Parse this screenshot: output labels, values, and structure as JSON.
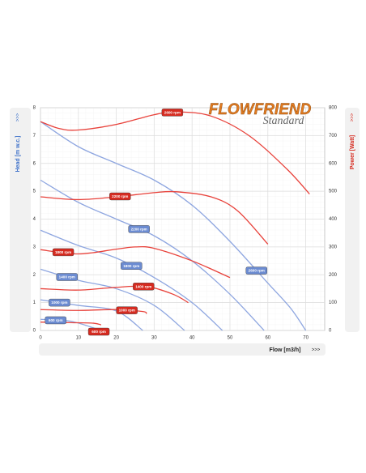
{
  "logo": {
    "brand": "FLOWFRIEND",
    "edition": "Standard"
  },
  "chart_data": {
    "type": "line",
    "y_label": "Head [m w.c.]",
    "y2_label": "Power [Watt]",
    "x_label": "Flow [m3/h]",
    "axis_arrow": ">>>",
    "xlim": [
      0,
      75
    ],
    "xticks": [
      0,
      10,
      20,
      30,
      40,
      50,
      60,
      70
    ],
    "ylim": [
      0,
      8
    ],
    "yticks": [
      0,
      1,
      2,
      3,
      4,
      5,
      6,
      7,
      8
    ],
    "y2lim": [
      0,
      800
    ],
    "y2ticks": [
      0,
      100,
      200,
      300,
      400,
      500,
      600,
      700,
      800
    ],
    "grid": true,
    "series": [
      {
        "name": "2600 rpm",
        "color": "#8ea6e0",
        "x": [
          0,
          10,
          20,
          30,
          40,
          50,
          60,
          66,
          70
        ],
        "values": [
          7.5,
          6.6,
          6.0,
          5.4,
          4.5,
          3.2,
          1.7,
          0.8,
          0
        ]
      },
      {
        "name": "2200 rpm",
        "color": "#8ea6e0",
        "x": [
          0,
          10,
          20,
          30,
          40,
          50,
          59
        ],
        "values": [
          5.4,
          4.6,
          4.0,
          3.4,
          2.5,
          1.3,
          0
        ]
      },
      {
        "name": "1800 rpm",
        "color": "#8ea6e0",
        "x": [
          0,
          10,
          20,
          30,
          40,
          48
        ],
        "values": [
          3.6,
          3.05,
          2.6,
          1.9,
          1.0,
          0
        ]
      },
      {
        "name": "1400 rpm",
        "color": "#8ea6e0",
        "x": [
          0,
          10,
          20,
          30,
          38
        ],
        "values": [
          2.2,
          1.8,
          1.5,
          0.9,
          0
        ]
      },
      {
        "name": "1000 rpm",
        "color": "#8ea6e0",
        "x": [
          0,
          10,
          20,
          27
        ],
        "values": [
          1.1,
          0.9,
          0.7,
          0
        ]
      },
      {
        "name": "600 rpm",
        "color": "#8ea6e0",
        "x": [
          0,
          8,
          16
        ],
        "values": [
          0.4,
          0.33,
          0
        ]
      },
      {
        "name": "2600 rpm",
        "color": "#e8413a",
        "axis": "y2",
        "x": [
          0,
          5,
          10,
          20,
          30,
          36,
          45,
          55,
          65,
          71
        ],
        "values": [
          750,
          725,
          720,
          740,
          775,
          785,
          770,
          700,
          580,
          490
        ]
      },
      {
        "name": "2200 rpm",
        "color": "#e8413a",
        "axis": "y2",
        "x": [
          0,
          10,
          20,
          30,
          36,
          45,
          52,
          60
        ],
        "values": [
          480,
          470,
          480,
          495,
          498,
          480,
          430,
          310
        ]
      },
      {
        "name": "1800 rpm",
        "color": "#e8413a",
        "axis": "y2",
        "x": [
          0,
          10,
          20,
          25,
          30,
          40,
          50
        ],
        "values": [
          290,
          275,
          292,
          300,
          295,
          250,
          190
        ]
      },
      {
        "name": "1400 rpm",
        "color": "#e8413a",
        "axis": "y2",
        "x": [
          0,
          10,
          20,
          28,
          35,
          39
        ],
        "values": [
          150,
          145,
          155,
          158,
          130,
          100
        ]
      },
      {
        "name": "1000 rpm",
        "color": "#e8413a",
        "axis": "y2",
        "x": [
          0,
          10,
          20,
          27,
          28
        ],
        "values": [
          75,
          72,
          75,
          68,
          60
        ]
      },
      {
        "name": "600 rpm",
        "color": "#e8413a",
        "axis": "y2",
        "x": [
          0,
          8,
          14,
          16
        ],
        "values": [
          30,
          28,
          26,
          20
        ]
      }
    ]
  }
}
